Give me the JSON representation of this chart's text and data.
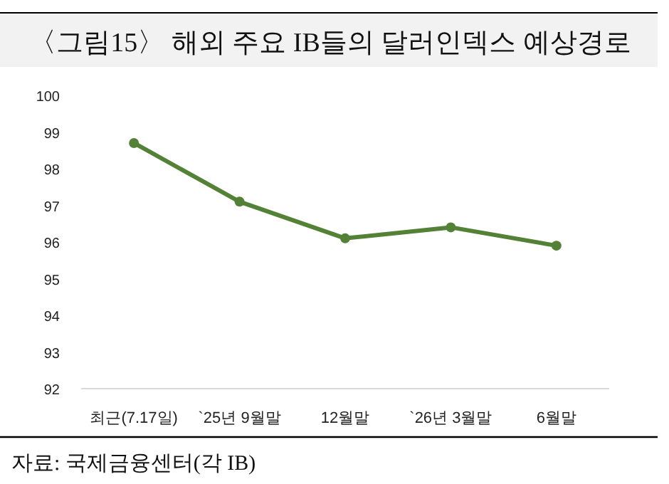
{
  "chart_data": {
    "type": "line",
    "title": "〈그림15〉 해외 주요 IB들의 달러인덱스 예상경로",
    "categories": [
      "최근(7.17일)",
      "`25년 9월말",
      "12월말",
      "`26년 3월말",
      "6월말"
    ],
    "series": [
      {
        "color": "#538135",
        "values": [
          98.7,
          97.1,
          96.1,
          96.4,
          95.9
        ]
      }
    ],
    "ylim": [
      92,
      100
    ],
    "yticks": [
      92,
      93,
      94,
      95,
      96,
      97,
      98,
      99,
      100
    ],
    "grid": false,
    "marker": "circle",
    "line_style": "solid",
    "annotations": [
      "자료: 국제금융센터(각 IB)"
    ]
  }
}
